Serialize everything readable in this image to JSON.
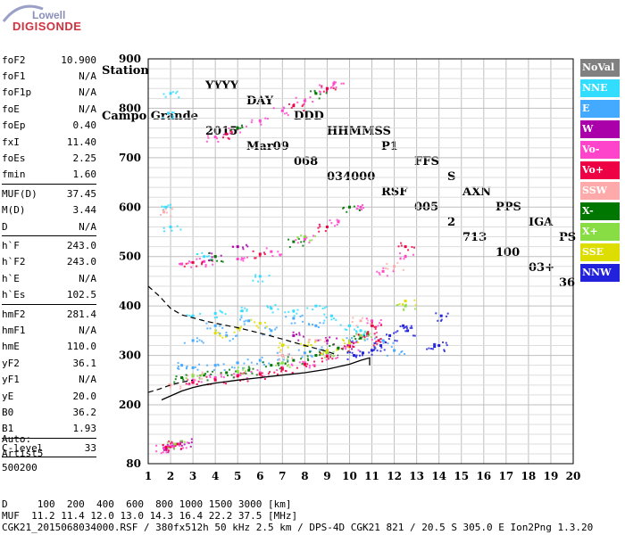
{
  "logo": {
    "top": "Lowell",
    "bottom": "DIGISONDE"
  },
  "header": {
    "labels": [
      "Station",
      "YYYY",
      "DAY",
      "DDD",
      "HHMMSS",
      "P1",
      "FFS",
      "S",
      "AXN",
      "PPS",
      "IGA",
      "PS"
    ],
    "values": [
      "Campo Grande",
      "2015",
      "Mar09",
      "068",
      "034000",
      "RSF",
      "005",
      "2",
      "713",
      "100",
      "03+",
      "36"
    ]
  },
  "params": {
    "group1": [
      {
        "name": "foF2",
        "value": "10.900"
      },
      {
        "name": "foF1",
        "value": "N/A"
      },
      {
        "name": "foF1p",
        "value": "N/A"
      },
      {
        "name": "foE",
        "value": "N/A"
      },
      {
        "name": "foEp",
        "value": "0.40"
      },
      {
        "name": "fxI",
        "value": "11.40"
      },
      {
        "name": "foEs",
        "value": "2.25"
      },
      {
        "name": "fmin",
        "value": "1.60"
      }
    ],
    "group2": [
      {
        "name": "MUF(D)",
        "value": "37.45"
      },
      {
        "name": "M(D)",
        "value": "3.44"
      },
      {
        "name": "D",
        "value": "N/A"
      }
    ],
    "group3": [
      {
        "name": "h`F",
        "value": "243.0"
      },
      {
        "name": "h`F2",
        "value": "243.0"
      },
      {
        "name": "h`E",
        "value": "N/A"
      },
      {
        "name": "h`Es",
        "value": "102.5"
      }
    ],
    "group4": [
      {
        "name": "hmF2",
        "value": "281.4"
      },
      {
        "name": "hmF1",
        "value": "N/A"
      },
      {
        "name": "hmE",
        "value": "110.0"
      },
      {
        "name": "yF2",
        "value": "36.1"
      },
      {
        "name": "yF1",
        "value": "N/A"
      },
      {
        "name": "yE",
        "value": "20.0"
      },
      {
        "name": "B0",
        "value": "36.2"
      },
      {
        "name": "B1",
        "value": "1.93"
      }
    ],
    "group5": [
      {
        "name": "C-level",
        "value": "33"
      }
    ]
  },
  "auto": {
    "line1": "Auto:",
    "line2": "Artist5",
    "line3": "500200"
  },
  "legend": [
    {
      "label": "NoVal",
      "color": "#808080"
    },
    {
      "label": "NNE",
      "color": "#33ddff"
    },
    {
      "label": "E",
      "color": "#44aaff"
    },
    {
      "label": "W",
      "color": "#aa00aa"
    },
    {
      "label": "Vo-",
      "color": "#ff44cc"
    },
    {
      "label": "Vo+",
      "color": "#ee0044"
    },
    {
      "label": "SSW",
      "color": "#ffaaaa"
    },
    {
      "label": "X-",
      "color": "#007700"
    },
    {
      "label": "X+",
      "color": "#88dd44"
    },
    {
      "label": "SSE",
      "color": "#dddd00"
    },
    {
      "label": "NNW",
      "color": "#2222dd"
    }
  ],
  "footer": {
    "line1": "D     100  200  400  600  800 1000 1500 3000 [km]",
    "line2": "MUF  11.2 11.4 12.0 13.0 14.3 16.4 22.2 37.5 [MHz]",
    "line3": "CGK21_2015068034000.RSF / 380fx512h 50 kHz 2.5 km / DPS-4D CGK21 821 / 20.5 S 305.0 E Ion2Png 1.3.20"
  },
  "chart_data": {
    "type": "scatter",
    "xlim": [
      1,
      20
    ],
    "ylim": [
      80,
      900
    ],
    "x_ticks": [
      "1",
      "2",
      "3",
      "4",
      "5",
      "6",
      "7",
      "8",
      "9",
      "10",
      "11",
      "12",
      "13",
      "14",
      "15",
      "16",
      "17",
      "18",
      "19",
      "20"
    ],
    "y_ticks": [
      "80",
      "200",
      "300",
      "400",
      "500",
      "600",
      "700",
      "800",
      "900"
    ],
    "grid": true,
    "series": [
      {
        "name": "NNE",
        "points": [
          [
            1.9,
            790
          ],
          [
            2.0,
            830
          ],
          [
            3.0,
            380
          ],
          [
            4.0,
            385
          ],
          [
            5.2,
            390
          ],
          [
            6.5,
            395
          ],
          [
            7.5,
            390
          ],
          [
            8.5,
            400
          ],
          [
            9.2,
            380
          ],
          [
            10.0,
            360
          ],
          [
            10.5,
            350
          ],
          [
            1.8,
            600
          ],
          [
            2.0,
            560
          ],
          [
            3.5,
            500
          ],
          [
            6.0,
            460
          ]
        ]
      },
      {
        "name": "E",
        "points": [
          [
            2.5,
            280
          ],
          [
            3.0,
            275
          ],
          [
            4.0,
            280
          ],
          [
            5.0,
            285
          ],
          [
            6.0,
            290
          ],
          [
            7.0,
            300
          ],
          [
            8.0,
            305
          ],
          [
            9.0,
            310
          ],
          [
            10.0,
            330
          ],
          [
            10.5,
            340
          ],
          [
            11.5,
            330
          ],
          [
            12.0,
            310
          ],
          [
            3.0,
            330
          ],
          [
            4.5,
            340
          ],
          [
            6.5,
            350
          ],
          [
            8.5,
            360
          ],
          [
            4.0,
            360
          ],
          [
            5.5,
            370
          ],
          [
            7.5,
            375
          ]
        ]
      },
      {
        "name": "W",
        "points": [
          [
            1.8,
            112
          ],
          [
            2.2,
            118
          ],
          [
            2.5,
            125
          ],
          [
            4.0,
            500
          ],
          [
            5.0,
            520
          ],
          [
            7.5,
            340
          ],
          [
            9.0,
            330
          ],
          [
            10.0,
            320
          ]
        ]
      },
      {
        "name": "Vo-",
        "points": [
          [
            1.7,
            112
          ],
          [
            2.0,
            115
          ],
          [
            2.4,
            120
          ],
          [
            3.0,
            250
          ],
          [
            4.0,
            255
          ],
          [
            5.0,
            260
          ],
          [
            6.0,
            265
          ],
          [
            7.0,
            275
          ],
          [
            8.0,
            285
          ],
          [
            9.0,
            300
          ],
          [
            10.0,
            320
          ],
          [
            10.8,
            340
          ],
          [
            2.5,
            485
          ],
          [
            3.5,
            490
          ],
          [
            5.0,
            495
          ],
          [
            6.5,
            510
          ],
          [
            8.0,
            535
          ],
          [
            9.5,
            570
          ],
          [
            10.5,
            600
          ],
          [
            4.0,
            742
          ],
          [
            5.0,
            758
          ],
          [
            6.0,
            775
          ],
          [
            7.0,
            795
          ],
          [
            8.0,
            815
          ],
          [
            9.0,
            840
          ],
          [
            9.3,
            850
          ],
          [
            11.5,
            470
          ],
          [
            12.5,
            500
          ],
          [
            11.0,
            370
          ]
        ]
      },
      {
        "name": "Vo+",
        "points": [
          [
            1.8,
            114
          ],
          [
            2.3,
            120
          ],
          [
            3.0,
            245
          ],
          [
            4.0,
            250
          ],
          [
            5.0,
            258
          ],
          [
            6.0,
            262
          ],
          [
            7.0,
            272
          ],
          [
            8.0,
            282
          ],
          [
            9.0,
            298
          ],
          [
            10.0,
            318
          ],
          [
            10.8,
            345
          ],
          [
            11.0,
            360
          ],
          [
            11.3,
            330
          ],
          [
            12.5,
            520
          ],
          [
            3.0,
            488
          ],
          [
            6.0,
            505
          ],
          [
            9.0,
            560
          ],
          [
            4.5,
            748
          ],
          [
            7.5,
            805
          ],
          [
            9.0,
            840
          ]
        ]
      },
      {
        "name": "SSW",
        "points": [
          [
            1.7,
            590
          ],
          [
            2.0,
            240
          ],
          [
            3.0,
            260
          ],
          [
            8.5,
            330
          ],
          [
            10.5,
            370
          ],
          [
            12.0,
            480
          ],
          [
            7.0,
            300
          ]
        ]
      },
      {
        "name": "X-",
        "points": [
          [
            2.5,
            255
          ],
          [
            3.5,
            260
          ],
          [
            4.5,
            265
          ],
          [
            5.5,
            270
          ],
          [
            6.5,
            280
          ],
          [
            7.5,
            290
          ],
          [
            8.5,
            300
          ],
          [
            9.5,
            315
          ],
          [
            10.5,
            335
          ],
          [
            4.0,
            500
          ],
          [
            7.5,
            530
          ],
          [
            10.0,
            600
          ],
          [
            5.0,
            760
          ],
          [
            8.5,
            830
          ]
        ]
      },
      {
        "name": "X+",
        "points": [
          [
            2.2,
            120
          ],
          [
            3.0,
            258
          ],
          [
            5.0,
            268
          ],
          [
            7.0,
            285
          ],
          [
            9.0,
            305
          ],
          [
            10.5,
            340
          ],
          [
            12.5,
            400
          ],
          [
            8.0,
            540
          ]
        ]
      },
      {
        "name": "SSE",
        "points": [
          [
            4.0,
            345
          ],
          [
            5.0,
            355
          ],
          [
            6.0,
            365
          ],
          [
            7.0,
            320
          ],
          [
            8.0,
            320
          ],
          [
            9.0,
            310
          ],
          [
            10.0,
            325
          ],
          [
            12.5,
            410
          ]
        ]
      },
      {
        "name": "NNW",
        "points": [
          [
            10.2,
            300
          ],
          [
            10.6,
            305
          ],
          [
            11.0,
            310
          ],
          [
            11.4,
            320
          ],
          [
            11.8,
            340
          ],
          [
            12.4,
            360
          ],
          [
            12.6,
            350
          ],
          [
            13.8,
            318
          ],
          [
            14.0,
            320
          ],
          [
            14.1,
            380
          ]
        ]
      }
    ],
    "profile_curve": [
      [
        1.6,
        210
      ],
      [
        2.0,
        218
      ],
      [
        2.5,
        228
      ],
      [
        3.0,
        235
      ],
      [
        3.5,
        240
      ],
      [
        4.0,
        244
      ],
      [
        5.0,
        250
      ],
      [
        6.0,
        255
      ],
      [
        7.0,
        260
      ],
      [
        8.0,
        265
      ],
      [
        9.0,
        272
      ],
      [
        10.0,
        282
      ],
      [
        10.5,
        290
      ],
      [
        10.9,
        295
      ],
      [
        10.9,
        280
      ]
    ],
    "dashed_curve": [
      [
        1.0,
        440
      ],
      [
        1.5,
        420
      ],
      [
        2.0,
        395
      ],
      [
        2.5,
        382
      ],
      [
        3.0,
        376
      ],
      [
        3.5,
        370
      ],
      [
        4.0,
        365
      ],
      [
        5.0,
        356
      ],
      [
        6.0,
        345
      ],
      [
        7.0,
        333
      ],
      [
        8.0,
        320
      ],
      [
        9.0,
        308
      ],
      [
        9.5,
        300
      ]
    ],
    "dashed_curve2": [
      [
        1.0,
        225
      ],
      [
        1.5,
        232
      ],
      [
        2.0,
        240
      ],
      [
        2.5,
        246
      ],
      [
        3.0,
        250
      ]
    ]
  }
}
